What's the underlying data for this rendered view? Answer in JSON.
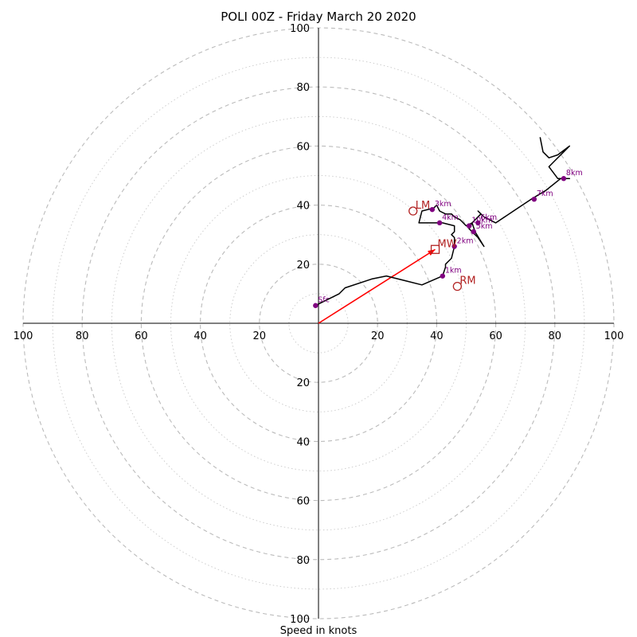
{
  "chart_data": {
    "type": "hodograph",
    "title": "POLI 00Z - Friday March 20 2020",
    "xlabel": "Speed in knots",
    "rlim": [
      0,
      100
    ],
    "grid": true,
    "colors": {
      "hodograph": "#000000",
      "height_marker": "#800080",
      "storm_motion": "#b22222",
      "shear_vector": "#ff0000",
      "grid": "#bbbbbb",
      "axes": "#000000"
    },
    "ring_labels": [
      "20",
      "40",
      "60",
      "80",
      "100"
    ],
    "x_tick_labels": [
      "100",
      "80",
      "60",
      "40",
      "20",
      "20",
      "40",
      "60",
      "80",
      "100"
    ],
    "y_tick_labels": [
      "100",
      "80",
      "60",
      "40",
      "20",
      "20",
      "40",
      "60",
      "80",
      "100"
    ],
    "hodograph_path": [
      [
        -1,
        6
      ],
      [
        3,
        8
      ],
      [
        7,
        10
      ],
      [
        9,
        12
      ],
      [
        18,
        15
      ],
      [
        23,
        16
      ],
      [
        35,
        13
      ],
      [
        42,
        16
      ],
      [
        43,
        19
      ],
      [
        43,
        20
      ],
      [
        44,
        21
      ],
      [
        45,
        22
      ],
      [
        46,
        26
      ],
      [
        46,
        28
      ],
      [
        46,
        29
      ],
      [
        45,
        30
      ],
      [
        46,
        31
      ],
      [
        46,
        33
      ],
      [
        42,
        34
      ],
      [
        34,
        34
      ],
      [
        35,
        38
      ],
      [
        39,
        39
      ],
      [
        40,
        40
      ],
      [
        41,
        38
      ],
      [
        43,
        37
      ],
      [
        45,
        37
      ],
      [
        46,
        36
      ],
      [
        48,
        35
      ],
      [
        50,
        33
      ],
      [
        52,
        34
      ],
      [
        53,
        31
      ],
      [
        56,
        26
      ],
      [
        54,
        29
      ],
      [
        51,
        32
      ],
      [
        52,
        34
      ],
      [
        55,
        37
      ],
      [
        54,
        38
      ],
      [
        56,
        36
      ],
      [
        60,
        34
      ],
      [
        66,
        38
      ],
      [
        72,
        42
      ],
      [
        77,
        45
      ],
      [
        82,
        49
      ],
      [
        85,
        49
      ],
      [
        81,
        49
      ],
      [
        78,
        53
      ],
      [
        80,
        55
      ],
      [
        83,
        58
      ],
      [
        85,
        60
      ],
      [
        81,
        57
      ],
      [
        78,
        56
      ],
      [
        76,
        58
      ],
      [
        75,
        63
      ]
    ],
    "height_markers": [
      {
        "label": "Sfc",
        "u": -1,
        "v": 6
      },
      {
        "label": "1km",
        "u": 42,
        "v": 16
      },
      {
        "label": "2km",
        "u": 46,
        "v": 26
      },
      {
        "label": "3km",
        "u": 38.5,
        "v": 38.5
      },
      {
        "label": "4km",
        "u": 41,
        "v": 34
      },
      {
        "label": "5km",
        "u": 52.5,
        "v": 31
      },
      {
        "label": "6km",
        "u": 54,
        "v": 34
      },
      {
        "label": "10km",
        "u": 51,
        "v": 33
      },
      {
        "label": "7km",
        "u": 73,
        "v": 42
      },
      {
        "label": "8km",
        "u": 83,
        "v": 49
      }
    ],
    "storm_motion": [
      {
        "label": "LM",
        "u": 32,
        "v": 38,
        "symbol": "circle"
      },
      {
        "label": "RM",
        "u": 47,
        "v": 12.5,
        "symbol": "circle"
      },
      {
        "label": "MW",
        "u": 39.5,
        "v": 25,
        "symbol": "square"
      }
    ],
    "shear_vector": {
      "from": [
        0,
        0
      ],
      "to": [
        39.5,
        25
      ]
    }
  }
}
